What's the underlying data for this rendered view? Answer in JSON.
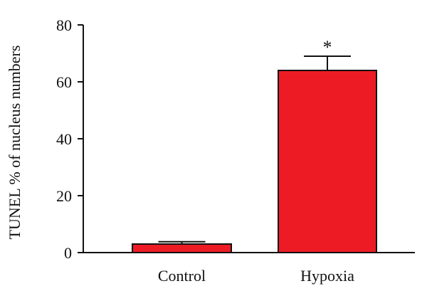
{
  "chart_data": {
    "type": "bar",
    "categories": [
      "Control",
      "Hypoxia"
    ],
    "values": [
      3,
      64
    ],
    "error_bars": [
      0.8,
      5
    ],
    "annotations": [
      "",
      "*"
    ],
    "ylabel": "TUNEL % of nucleus numbers",
    "xlabel": "",
    "ylim": [
      0,
      80
    ],
    "yticks": [
      0,
      20,
      40,
      60,
      80
    ],
    "bar_color": "#ed1c24",
    "grid": false
  }
}
